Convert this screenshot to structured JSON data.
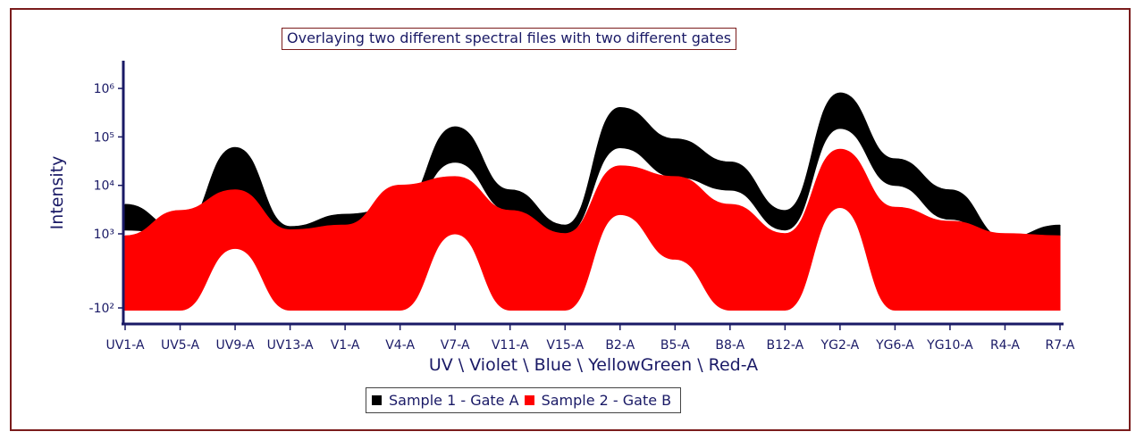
{
  "chart_data": {
    "type": "line",
    "title": "Overlaying two different spectral files with two different gates",
    "xlabel": "UV \\ Violet \\ Blue \\ YellowGreen \\ Red-A",
    "ylabel": "Intensity",
    "yscale": "log",
    "ylim": [
      -200,
      3000000
    ],
    "y_tick_labels": [
      "-10²",
      "10³",
      "10⁴",
      "10⁵",
      "10⁶"
    ],
    "y_tick_values": [
      -100,
      1000,
      10000,
      100000,
      1000000
    ],
    "x_tick_labels": [
      "UV1-A",
      "UV5-A",
      "UV9-A",
      "UV13-A",
      "V1-A",
      "V4-A",
      "V7-A",
      "V11-A",
      "V15-A",
      "B2-A",
      "B5-A",
      "B8-A",
      "B12-A",
      "YG2-A",
      "YG6-A",
      "YG10-A",
      "R4-A",
      "R7-A"
    ],
    "legend_position": "bottom",
    "series": [
      {
        "name": "Sample 1 - Gate A",
        "color": "#000000",
        "channels": [
          "UV1-A",
          "UV5-A",
          "UV9-A",
          "UV13-A",
          "V1-A",
          "V4-A",
          "V7-A",
          "V11-A",
          "V15-A",
          "B2-A",
          "B5-A",
          "B8-A",
          "B12-A",
          "YG2-A",
          "YG6-A",
          "YG10-A",
          "R4-A",
          "R7-A"
        ],
        "upper": [
          4000,
          1200,
          60000,
          1400,
          2500,
          3500,
          160000,
          8000,
          1500,
          400000,
          90000,
          30000,
          3000,
          800000,
          35000,
          8000,
          800,
          1500
        ],
        "lower": [
          1200,
          1000,
          5000,
          900,
          1000,
          2500,
          30000,
          3000,
          1000,
          60000,
          15000,
          8000,
          1200,
          150000,
          10000,
          2000,
          600,
          700
        ]
      },
      {
        "name": "Sample 2 - Gate B",
        "color": "#ff0000",
        "channels": [
          "UV1-A",
          "UV5-A",
          "UV9-A",
          "UV13-A",
          "V1-A",
          "V4-A",
          "V7-A",
          "V11-A",
          "V15-A",
          "B2-A",
          "B5-A",
          "B8-A",
          "B12-A",
          "YG2-A",
          "YG6-A",
          "YG10-A",
          "R4-A",
          "R7-A"
        ],
        "upper": [
          900,
          3000,
          8000,
          1200,
          1500,
          10000,
          15000,
          3000,
          1000,
          25000,
          15000,
          4000,
          1000,
          55000,
          3500,
          1800,
          1000,
          900
        ],
        "lower": [
          -150,
          -150,
          500,
          -150,
          -150,
          -150,
          1000,
          -150,
          -150,
          2500,
          200,
          -150,
          -150,
          3500,
          -150,
          -150,
          -150,
          -150
        ]
      }
    ]
  }
}
